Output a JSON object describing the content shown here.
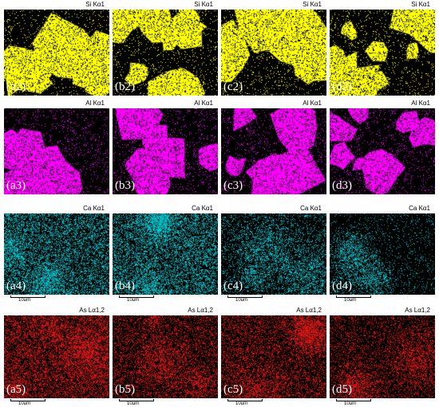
{
  "rows": [
    {
      "element": "Si",
      "title": "Si Kα1",
      "color": "#ffff00",
      "show_scale": false,
      "panels": [
        {
          "label": "(a2)"
        },
        {
          "label": "(b2)"
        },
        {
          "label": "(c2)"
        },
        {
          "label": "(d2)"
        }
      ]
    },
    {
      "element": "Al",
      "title": "Al Kα1",
      "color": "#ff00ff",
      "show_scale": false,
      "panels": [
        {
          "label": "(a3)"
        },
        {
          "label": "(b3)"
        },
        {
          "label": "(c3)"
        },
        {
          "label": "(d3)"
        }
      ]
    },
    {
      "element": "Ca",
      "title": "Ca Kα1",
      "color": "#00e5ee",
      "show_scale": true,
      "panels": [
        {
          "label": "(a4)",
          "scale": "10μm"
        },
        {
          "label": "(b4)",
          "scale": "10μm"
        },
        {
          "label": "(c4)",
          "scale": "10μm"
        },
        {
          "label": "(d4)",
          "scale": "10μm"
        }
      ]
    },
    {
      "element": "As",
      "title": "As Lα1,2",
      "color": "#ff1a1a",
      "show_scale": true,
      "panels": [
        {
          "label": "(a5)",
          "scale": "10μm"
        },
        {
          "label": "(b5)",
          "scale": "10μm"
        },
        {
          "label": "(c5)",
          "scale": "10μm"
        },
        {
          "label": "(d5)",
          "scale": "10μm"
        }
      ]
    }
  ]
}
